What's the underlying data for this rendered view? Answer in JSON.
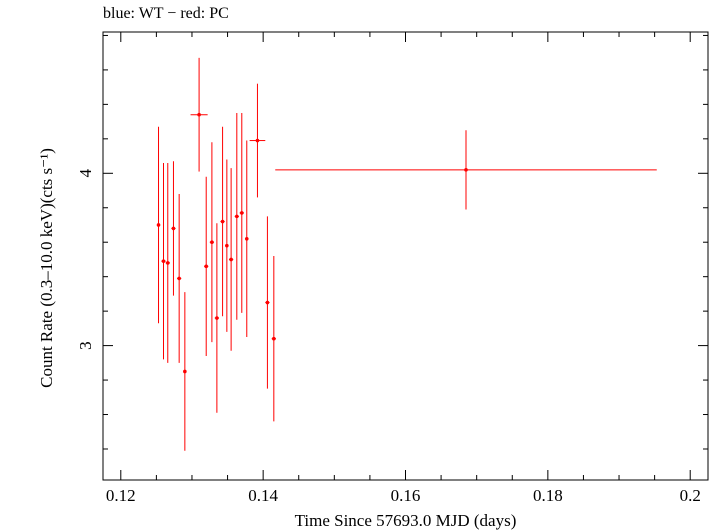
{
  "chart_data": {
    "type": "scatter",
    "title": "blue: WT − red: PC",
    "xlabel": "Time Since 57693.0 MJD (days)",
    "ylabel": "Count Rate (0.3–10.0 keV)(cts s⁻¹)",
    "xlim": [
      0.1175,
      0.2025
    ],
    "ylim": [
      2.22,
      4.82
    ],
    "x_ticks": [
      0.12,
      0.14,
      0.16,
      0.18,
      0.2
    ],
    "x_tick_labels": [
      "0.12",
      "0.14",
      "0.16",
      "0.18",
      "0.2"
    ],
    "y_ticks": [
      3,
      4
    ],
    "y_tick_labels": [
      "3",
      "4"
    ],
    "grid": false,
    "series": [
      {
        "name": "PC",
        "color": "#ff0000",
        "points": [
          {
            "x": 0.1253,
            "xerr": 0.0002,
            "y": 3.7,
            "yerr": 0.57
          },
          {
            "x": 0.126,
            "xerr": 0.0003,
            "y": 3.49,
            "yerr": 0.57
          },
          {
            "x": 0.1266,
            "xerr": 0.0003,
            "y": 3.48,
            "yerr": 0.58
          },
          {
            "x": 0.1274,
            "xerr": 0.0003,
            "y": 3.68,
            "yerr": 0.39
          },
          {
            "x": 0.1282,
            "xerr": 0.0003,
            "y": 3.39,
            "yerr": 0.49
          },
          {
            "x": 0.129,
            "xerr": 0.0002,
            "y": 2.85,
            "yerr": 0.46
          },
          {
            "x": 0.131,
            "xerr": 0.0012,
            "y": 4.34,
            "yerr": 0.33
          },
          {
            "x": 0.132,
            "xerr": 0.0003,
            "y": 3.46,
            "yerr": 0.52
          },
          {
            "x": 0.1328,
            "xerr": 0.0003,
            "y": 3.6,
            "yerr": 0.58
          },
          {
            "x": 0.1335,
            "xerr": 0.0003,
            "y": 3.16,
            "yerr": 0.55
          },
          {
            "x": 0.1343,
            "xerr": 0.0003,
            "y": 3.72,
            "yerr": 0.55
          },
          {
            "x": 0.1349,
            "xerr": 0.0002,
            "y": 3.58,
            "yerr": 0.5
          },
          {
            "x": 0.1355,
            "xerr": 0.0003,
            "y": 3.5,
            "yerr": 0.53
          },
          {
            "x": 0.1363,
            "xerr": 0.0003,
            "y": 3.75,
            "yerr": 0.6
          },
          {
            "x": 0.137,
            "xerr": 0.0003,
            "y": 3.77,
            "yerr": 0.58
          },
          {
            "x": 0.1377,
            "xerr": 0.0002,
            "y": 3.62,
            "yerr": 0.57
          },
          {
            "x": 0.1392,
            "xerr": 0.0011,
            "y": 4.19,
            "yerr": 0.33
          },
          {
            "x": 0.1406,
            "xerr": 0.0003,
            "y": 3.25,
            "yerr": 0.5
          },
          {
            "x": 0.1415,
            "xerr": 0.0003,
            "y": 3.04,
            "yerr": 0.48
          },
          {
            "x": 0.1685,
            "xerr": 0.0268,
            "y": 4.02,
            "yerr": 0.23
          }
        ]
      }
    ]
  }
}
